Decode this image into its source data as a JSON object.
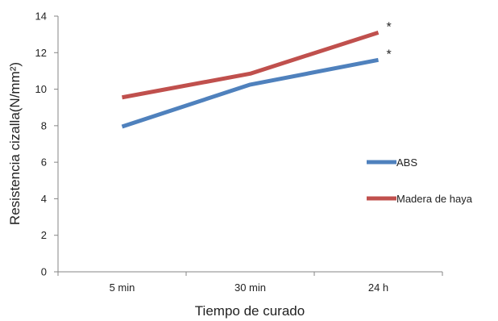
{
  "chart_data": {
    "type": "line",
    "categories": [
      "5 min",
      "30 min",
      "24 h"
    ],
    "series": [
      {
        "name": "ABS",
        "values": [
          7.95,
          10.25,
          11.6
        ],
        "color": "#4F81BD",
        "annotations": [
          "",
          "",
          "*"
        ]
      },
      {
        "name": "Madera de haya",
        "values": [
          9.55,
          10.85,
          13.1
        ],
        "color": "#C0504D",
        "annotations": [
          "",
          "",
          "*"
        ]
      }
    ],
    "title": "",
    "xlabel": "Tiempo de curado",
    "ylabel": "Resistencia cizalla(N/mm²)",
    "ylim": [
      0,
      14
    ],
    "yticks": [
      0,
      2,
      4,
      6,
      8,
      10,
      12,
      14
    ],
    "grid": false,
    "legend_position": "right"
  }
}
